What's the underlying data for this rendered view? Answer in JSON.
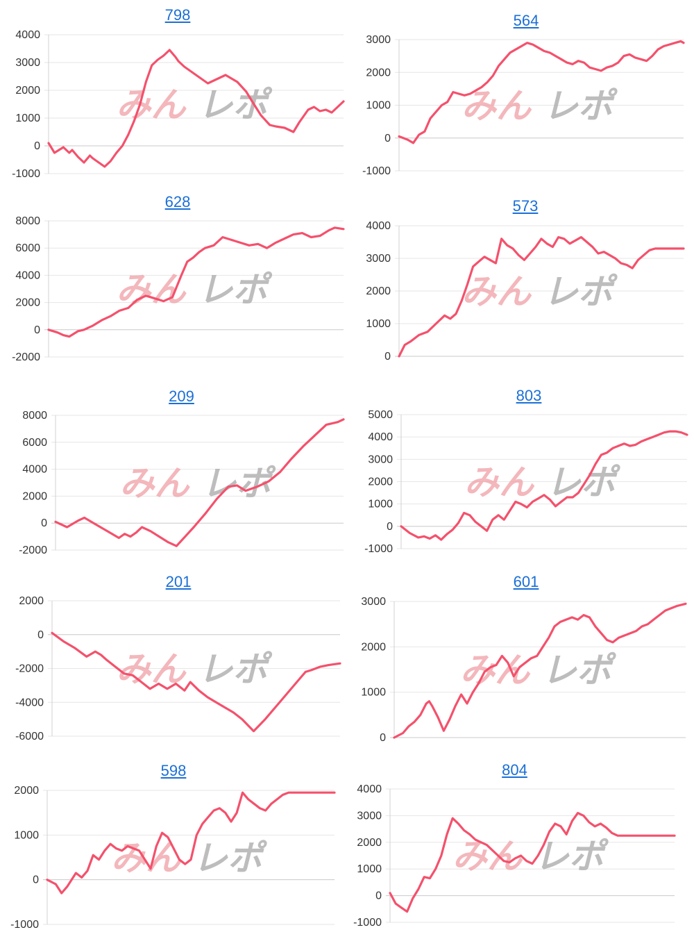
{
  "watermark": {
    "red_text": "みん",
    "gray_text": "レポ",
    "red_color": "#f0a0a6",
    "gray_color": "#a8a8a8"
  },
  "line_color": "#f4516c",
  "grid_color": "#e6e6e6",
  "chart_data": [
    {
      "type": "line",
      "title": "798",
      "ylim": [
        -1000,
        4000
      ],
      "yticks": [
        -1000,
        0,
        1000,
        2000,
        3000,
        4000
      ],
      "x": [
        0,
        0.02,
        0.05,
        0.07,
        0.08,
        0.1,
        0.12,
        0.14,
        0.15,
        0.17,
        0.19,
        0.21,
        0.23,
        0.25,
        0.27,
        0.29,
        0.31,
        0.33,
        0.35,
        0.37,
        0.39,
        0.41,
        0.43,
        0.44,
        0.46,
        0.48,
        0.5,
        0.52,
        0.54,
        0.56,
        0.6,
        0.64,
        0.67,
        0.69,
        0.72,
        0.75,
        0.77,
        0.8,
        0.83,
        0.85,
        0.88,
        0.9,
        0.92,
        0.94,
        0.96,
        0.98,
        1.0
      ],
      "values": [
        100,
        -250,
        -50,
        -250,
        -150,
        -400,
        -600,
        -350,
        -450,
        -600,
        -750,
        -550,
        -250,
        0,
        400,
        900,
        1500,
        2300,
        2900,
        3100,
        3250,
        3450,
        3200,
        3050,
        2850,
        2700,
        2550,
        2400,
        2250,
        2350,
        2550,
        2300,
        1950,
        1600,
        1100,
        750,
        700,
        650,
        500,
        850,
        1300,
        1400,
        1250,
        1300,
        1200,
        1400,
        1600
      ]
    },
    {
      "type": "line",
      "title": "564",
      "ylim": [
        -1000,
        3000
      ],
      "yticks": [
        -1000,
        0,
        1000,
        2000,
        3000
      ],
      "x": [
        0,
        0.03,
        0.05,
        0.07,
        0.09,
        0.11,
        0.13,
        0.15,
        0.17,
        0.19,
        0.21,
        0.23,
        0.25,
        0.27,
        0.29,
        0.31,
        0.33,
        0.35,
        0.37,
        0.39,
        0.41,
        0.43,
        0.45,
        0.47,
        0.49,
        0.51,
        0.53,
        0.55,
        0.57,
        0.59,
        0.61,
        0.63,
        0.65,
        0.67,
        0.69,
        0.71,
        0.73,
        0.75,
        0.77,
        0.79,
        0.81,
        0.83,
        0.85,
        0.87,
        0.89,
        0.91,
        0.93,
        0.95,
        0.97,
        0.99,
        1.0
      ],
      "values": [
        50,
        -50,
        -150,
        100,
        200,
        600,
        800,
        1000,
        1100,
        1400,
        1350,
        1300,
        1350,
        1450,
        1550,
        1700,
        1900,
        2200,
        2400,
        2600,
        2700,
        2800,
        2900,
        2850,
        2750,
        2650,
        2600,
        2500,
        2400,
        2300,
        2250,
        2350,
        2300,
        2150,
        2100,
        2050,
        2150,
        2200,
        2300,
        2500,
        2550,
        2450,
        2400,
        2350,
        2500,
        2700,
        2800,
        2850,
        2900,
        2950,
        2900
      ]
    },
    {
      "type": "line",
      "title": "628",
      "ylim": [
        -2000,
        8000
      ],
      "yticks": [
        -2000,
        0,
        2000,
        4000,
        6000,
        8000
      ],
      "x": [
        0,
        0.03,
        0.05,
        0.07,
        0.1,
        0.12,
        0.15,
        0.18,
        0.21,
        0.24,
        0.27,
        0.3,
        0.33,
        0.36,
        0.39,
        0.42,
        0.45,
        0.47,
        0.49,
        0.51,
        0.53,
        0.56,
        0.59,
        0.62,
        0.65,
        0.68,
        0.71,
        0.74,
        0.77,
        0.8,
        0.83,
        0.86,
        0.89,
        0.92,
        0.95,
        0.97,
        1.0
      ],
      "values": [
        0,
        -200,
        -400,
        -500,
        -100,
        0,
        300,
        700,
        1000,
        1400,
        1600,
        2200,
        2500,
        2300,
        2100,
        2400,
        4000,
        5000,
        5300,
        5700,
        6000,
        6200,
        6800,
        6600,
        6400,
        6200,
        6300,
        6000,
        6400,
        6700,
        7000,
        7100,
        6800,
        6900,
        7300,
        7500,
        7400
      ]
    },
    {
      "type": "line",
      "title": "573",
      "ylim": [
        0,
        4000
      ],
      "yticks": [
        0,
        1000,
        2000,
        3000,
        4000
      ],
      "x": [
        0,
        0.02,
        0.04,
        0.07,
        0.1,
        0.13,
        0.16,
        0.18,
        0.2,
        0.22,
        0.24,
        0.26,
        0.28,
        0.3,
        0.32,
        0.34,
        0.36,
        0.38,
        0.4,
        0.42,
        0.44,
        0.46,
        0.48,
        0.5,
        0.52,
        0.54,
        0.56,
        0.58,
        0.6,
        0.62,
        0.64,
        0.66,
        0.68,
        0.7,
        0.72,
        0.74,
        0.76,
        0.78,
        0.8,
        0.82,
        0.84,
        0.86,
        0.88,
        0.9,
        0.93,
        0.96,
        1.0
      ],
      "values": [
        0,
        350,
        450,
        650,
        750,
        1000,
        1250,
        1150,
        1300,
        1700,
        2200,
        2750,
        2900,
        3050,
        2950,
        2850,
        3600,
        3400,
        3300,
        3100,
        2950,
        3150,
        3350,
        3600,
        3450,
        3350,
        3650,
        3600,
        3450,
        3550,
        3650,
        3500,
        3350,
        3150,
        3200,
        3100,
        3000,
        2850,
        2800,
        2700,
        2950,
        3100,
        3250,
        3300,
        3300,
        3300,
        3300
      ]
    },
    {
      "type": "line",
      "title": "209",
      "ylim": [
        -2000,
        8000
      ],
      "yticks": [
        -2000,
        0,
        2000,
        4000,
        6000,
        8000
      ],
      "x": [
        0,
        0.04,
        0.08,
        0.1,
        0.14,
        0.18,
        0.22,
        0.24,
        0.26,
        0.28,
        0.3,
        0.33,
        0.36,
        0.39,
        0.42,
        0.45,
        0.48,
        0.52,
        0.56,
        0.6,
        0.63,
        0.66,
        0.7,
        0.74,
        0.78,
        0.82,
        0.86,
        0.9,
        0.94,
        0.98,
        1.0
      ],
      "values": [
        100,
        -300,
        200,
        400,
        -100,
        -600,
        -1100,
        -800,
        -1000,
        -700,
        -300,
        -600,
        -1000,
        -1400,
        -1700,
        -1000,
        -300,
        700,
        1800,
        2700,
        2800,
        2400,
        2700,
        3100,
        3800,
        4800,
        5700,
        6500,
        7300,
        7500,
        7700
      ]
    },
    {
      "type": "line",
      "title": "803",
      "ylim": [
        -1000,
        5000
      ],
      "yticks": [
        -1000,
        0,
        1000,
        2000,
        3000,
        4000,
        5000
      ],
      "x": [
        0,
        0.03,
        0.06,
        0.08,
        0.1,
        0.12,
        0.14,
        0.16,
        0.18,
        0.2,
        0.22,
        0.24,
        0.26,
        0.28,
        0.3,
        0.32,
        0.34,
        0.36,
        0.38,
        0.4,
        0.42,
        0.44,
        0.46,
        0.48,
        0.5,
        0.52,
        0.54,
        0.56,
        0.58,
        0.6,
        0.62,
        0.64,
        0.66,
        0.68,
        0.7,
        0.72,
        0.74,
        0.76,
        0.78,
        0.8,
        0.82,
        0.84,
        0.86,
        0.88,
        0.9,
        0.92,
        0.94,
        0.96,
        0.98,
        1.0
      ],
      "values": [
        0,
        -300,
        -500,
        -450,
        -550,
        -400,
        -600,
        -350,
        -150,
        150,
        600,
        500,
        200,
        0,
        -200,
        300,
        500,
        300,
        700,
        1100,
        1000,
        850,
        1100,
        1250,
        1400,
        1200,
        900,
        1100,
        1300,
        1300,
        1500,
        1900,
        2300,
        2800,
        3200,
        3300,
        3500,
        3600,
        3700,
        3600,
        3650,
        3800,
        3900,
        4000,
        4100,
        4200,
        4250,
        4250,
        4200,
        4100
      ]
    },
    {
      "type": "line",
      "title": "201",
      "ylim": [
        -6000,
        2000
      ],
      "yticks": [
        -6000,
        -4000,
        -2000,
        0,
        2000
      ],
      "x": [
        0,
        0.04,
        0.08,
        0.12,
        0.15,
        0.17,
        0.19,
        0.22,
        0.25,
        0.28,
        0.31,
        0.34,
        0.37,
        0.4,
        0.43,
        0.46,
        0.48,
        0.51,
        0.54,
        0.57,
        0.6,
        0.63,
        0.66,
        0.7,
        0.74,
        0.78,
        0.82,
        0.86,
        0.88,
        0.9,
        0.93,
        0.96,
        1.0
      ],
      "values": [
        100,
        -400,
        -800,
        -1300,
        -1000,
        -1200,
        -1500,
        -1900,
        -2300,
        -2400,
        -2800,
        -3200,
        -2900,
        -3200,
        -2900,
        -3300,
        -2800,
        -3300,
        -3700,
        -4000,
        -4300,
        -4600,
        -5000,
        -5700,
        -5000,
        -4200,
        -3400,
        -2600,
        -2200,
        -2100,
        -1900,
        -1800,
        -1700
      ]
    },
    {
      "type": "line",
      "title": "601",
      "ylim": [
        0,
        3000
      ],
      "yticks": [
        0,
        1000,
        2000,
        3000
      ],
      "x": [
        0,
        0.03,
        0.05,
        0.07,
        0.09,
        0.11,
        0.12,
        0.13,
        0.15,
        0.17,
        0.19,
        0.21,
        0.23,
        0.25,
        0.27,
        0.29,
        0.31,
        0.33,
        0.35,
        0.37,
        0.39,
        0.41,
        0.43,
        0.45,
        0.47,
        0.49,
        0.51,
        0.53,
        0.55,
        0.57,
        0.59,
        0.61,
        0.63,
        0.65,
        0.67,
        0.69,
        0.71,
        0.73,
        0.75,
        0.77,
        0.79,
        0.81,
        0.83,
        0.85,
        0.87,
        0.89,
        0.91,
        0.93,
        0.95,
        0.97,
        1.0
      ],
      "values": [
        0,
        100,
        250,
        350,
        500,
        750,
        800,
        700,
        450,
        150,
        400,
        700,
        950,
        750,
        1000,
        1200,
        1450,
        1550,
        1600,
        1800,
        1650,
        1350,
        1550,
        1650,
        1750,
        1800,
        2000,
        2200,
        2450,
        2550,
        2600,
        2650,
        2600,
        2700,
        2650,
        2450,
        2300,
        2150,
        2100,
        2200,
        2250,
        2300,
        2350,
        2450,
        2500,
        2600,
        2700,
        2800,
        2850,
        2900,
        2950
      ]
    },
    {
      "type": "line",
      "title": "598",
      "ylim": [
        -1000,
        2000
      ],
      "yticks": [
        -1000,
        0,
        1000,
        2000
      ],
      "x": [
        0,
        0.03,
        0.05,
        0.07,
        0.1,
        0.12,
        0.14,
        0.16,
        0.18,
        0.2,
        0.22,
        0.24,
        0.26,
        0.28,
        0.3,
        0.32,
        0.34,
        0.36,
        0.38,
        0.4,
        0.42,
        0.44,
        0.46,
        0.48,
        0.5,
        0.52,
        0.54,
        0.56,
        0.58,
        0.6,
        0.62,
        0.64,
        0.66,
        0.68,
        0.7,
        0.72,
        0.74,
        0.76,
        0.78,
        0.8,
        0.82,
        0.84,
        0.86,
        0.88,
        0.9,
        0.92,
        0.94,
        0.96,
        0.98,
        1.0
      ],
      "values": [
        0,
        -100,
        -300,
        -150,
        150,
        50,
        200,
        550,
        450,
        650,
        800,
        700,
        650,
        750,
        700,
        650,
        450,
        250,
        750,
        1050,
        950,
        700,
        450,
        350,
        450,
        1000,
        1250,
        1400,
        1550,
        1600,
        1500,
        1300,
        1500,
        1950,
        1800,
        1700,
        1600,
        1550,
        1700,
        1800,
        1900,
        1950,
        1950,
        1950,
        1950,
        1950,
        1950,
        1950,
        1950,
        1950
      ]
    },
    {
      "type": "line",
      "title": "804",
      "ylim": [
        -1000,
        4000
      ],
      "yticks": [
        -1000,
        0,
        1000,
        2000,
        3000,
        4000
      ],
      "x": [
        0,
        0.02,
        0.04,
        0.06,
        0.08,
        0.1,
        0.12,
        0.14,
        0.16,
        0.18,
        0.2,
        0.22,
        0.24,
        0.26,
        0.28,
        0.3,
        0.32,
        0.34,
        0.36,
        0.38,
        0.4,
        0.42,
        0.44,
        0.46,
        0.48,
        0.5,
        0.52,
        0.54,
        0.56,
        0.58,
        0.6,
        0.62,
        0.64,
        0.66,
        0.68,
        0.7,
        0.72,
        0.74,
        0.76,
        0.78,
        0.8,
        0.82,
        0.84,
        0.86,
        0.88,
        0.9,
        0.92,
        0.94,
        0.96,
        0.98,
        1.0
      ],
      "values": [
        100,
        -300,
        -450,
        -600,
        -100,
        250,
        700,
        650,
        1000,
        1500,
        2300,
        2900,
        2700,
        2450,
        2300,
        2100,
        2000,
        1900,
        1700,
        1500,
        1300,
        1250,
        1400,
        1500,
        1300,
        1200,
        1500,
        1900,
        2400,
        2700,
        2600,
        2300,
        2800,
        3100,
        3000,
        2750,
        2600,
        2700,
        2550,
        2350,
        2250,
        2250,
        2250,
        2250,
        2250,
        2250,
        2250,
        2250,
        2250,
        2250,
        2250
      ]
    }
  ]
}
